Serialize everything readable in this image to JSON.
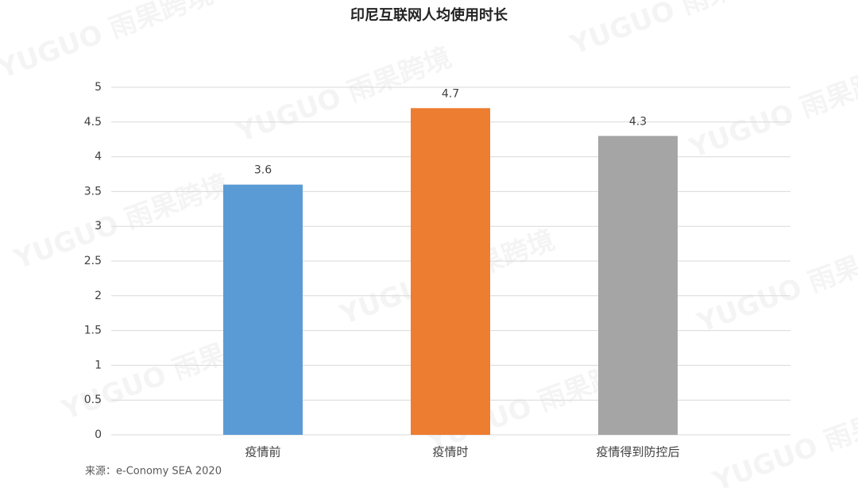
{
  "chart_data": {
    "type": "bar",
    "title": "印尼互联网人均使用时长",
    "categories": [
      "疫情前",
      "疫情时",
      "疫情得到防控后"
    ],
    "values": [
      3.6,
      4.7,
      4.3
    ],
    "colors": [
      "#5b9bd5",
      "#ed7d31",
      "#a5a5a5"
    ],
    "ylim": [
      0,
      5
    ],
    "yticks": [
      0,
      0.5,
      1,
      1.5,
      2,
      2.5,
      3,
      3.5,
      4,
      4.5,
      5
    ],
    "grid": true,
    "source": "来源：e-Conomy SEA 2020",
    "watermark": "YUGUO 雨果跨境"
  }
}
